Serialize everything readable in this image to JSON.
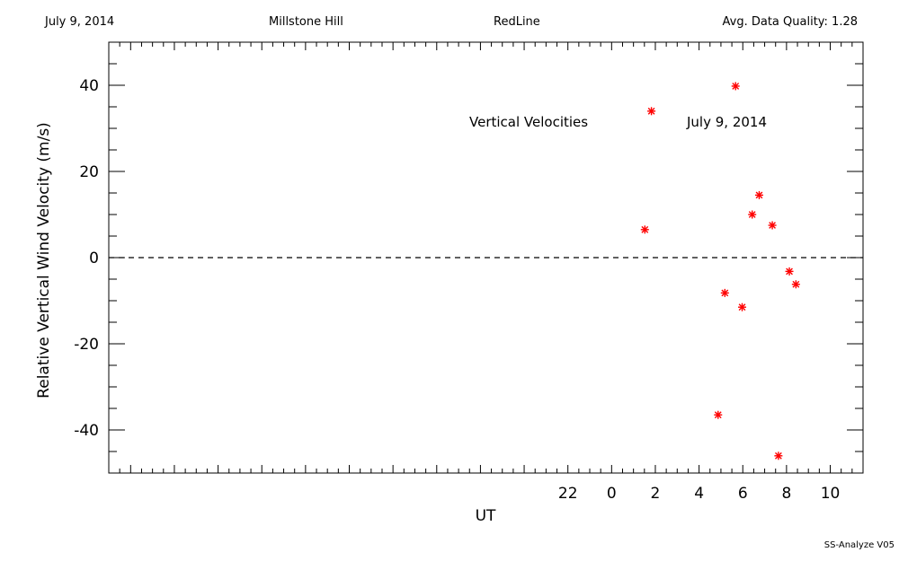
{
  "header": {
    "date": "July 9, 2014",
    "site": "Millstone Hill",
    "instrument": "RedLine",
    "quality": "Avg. Data Quality: 1.28"
  },
  "footer": "SS-Analyze V05",
  "colors": {
    "marker": "#ff0000",
    "axis": "#000000",
    "background": "#ffffff"
  },
  "chart_data": {
    "type": "scatter",
    "title": "",
    "xlabel": "UT",
    "ylabel": "Relative Vertical Wind Velocity (m/s)",
    "xlim": [
      -23,
      11.5
    ],
    "ylim": [
      -50,
      50
    ],
    "grid": false,
    "x_ticks": [
      22,
      0,
      2,
      4,
      6,
      8,
      10
    ],
    "x_tick_values": [
      -2,
      0,
      2,
      4,
      6,
      8,
      10
    ],
    "y_ticks": [
      -40,
      -20,
      0,
      20,
      40
    ],
    "zero_line": {
      "y": 0,
      "style": "dashed"
    },
    "annotations": [
      "Vertical Velocities",
      "July 9, 2014"
    ],
    "marker": "asterisk",
    "series": [
      {
        "x": [
          1.52,
          1.82,
          4.87,
          5.18,
          5.67,
          5.97,
          6.43,
          6.75,
          7.35,
          7.63,
          8.13,
          8.43
        ],
        "y": [
          6.5,
          34.0,
          -36.5,
          -8.2,
          39.8,
          -11.5,
          10.0,
          14.5,
          7.5,
          -46.0,
          -3.2,
          -6.2
        ]
      }
    ]
  }
}
